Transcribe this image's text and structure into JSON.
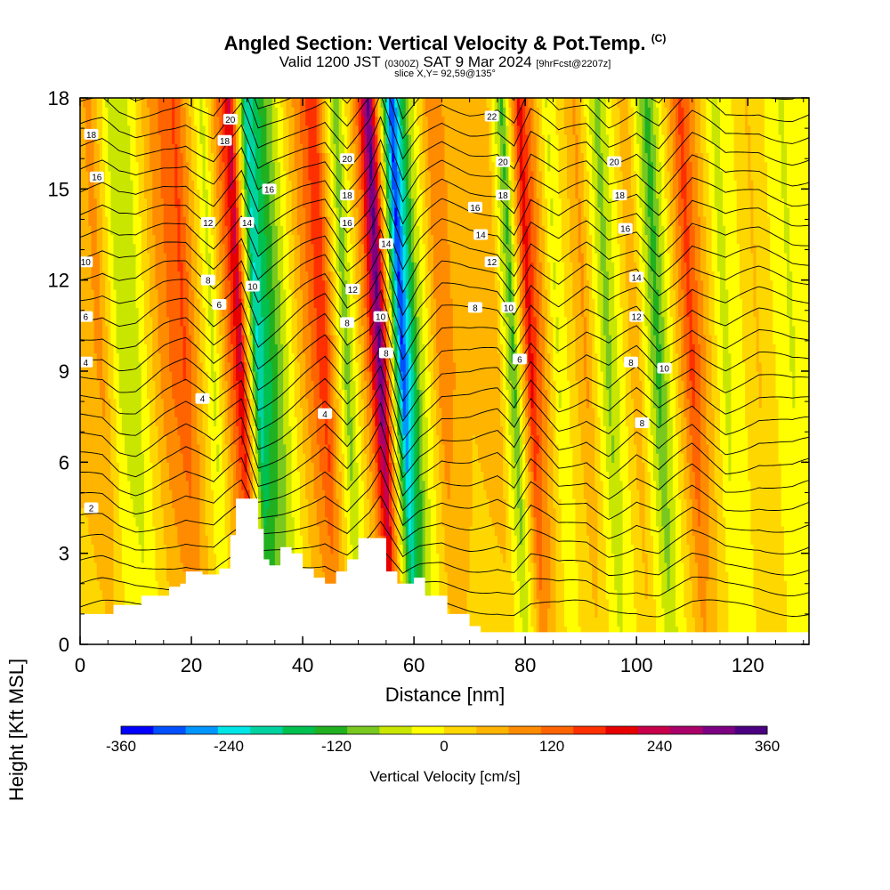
{
  "title": {
    "main": "Angled Section: Vertical Velocity & Pot.Temp.",
    "main_tag": "(C)",
    "valid_prefix": "Valid 1200 JST",
    "valid_zulu": "(0300Z)",
    "valid_date": "SAT 9 Mar 2024",
    "forecast": "[9hrFcst@2207z]",
    "slice": "slice X,Y= 92,59@135°"
  },
  "chart_data": {
    "type": "heatmap",
    "xlabel": "Distance [nm]",
    "ylabel": "Height [Kft MSL]",
    "xlim": [
      0,
      131
    ],
    "ylim": [
      0,
      18
    ],
    "x_ticks": [
      "0",
      "20",
      "40",
      "60",
      "80",
      "100",
      "120"
    ],
    "y_ticks": [
      "0",
      "3",
      "6",
      "9",
      "12",
      "15",
      "18"
    ],
    "colorbar": {
      "label": "Vertical Velocity [cm/s]",
      "ticks": [
        "-360",
        "-240",
        "-120",
        "0",
        "120",
        "240",
        "360"
      ],
      "min": -360,
      "max": 360,
      "colors": [
        "#0000ff",
        "#0050ff",
        "#0096ff",
        "#00e6e6",
        "#00d2a0",
        "#00c050",
        "#20b020",
        "#78c820",
        "#c8e600",
        "#ffff00",
        "#ffd700",
        "#ffb400",
        "#ff8c00",
        "#ff6400",
        "#ff3000",
        "#e60000",
        "#c8004b",
        "#aa0069",
        "#7d0082",
        "#4b0082"
      ]
    },
    "velocity_bands": [
      {
        "x": 0,
        "value": 50
      },
      {
        "x": 4,
        "value": 80
      },
      {
        "x": 7,
        "value": -40
      },
      {
        "x": 10,
        "value": -60
      },
      {
        "x": 15,
        "value": 90
      },
      {
        "x": 19,
        "value": 150
      },
      {
        "x": 24,
        "value": -50
      },
      {
        "x": 29,
        "value": 230
      },
      {
        "x": 32,
        "value": -220
      },
      {
        "x": 36,
        "value": -90
      },
      {
        "x": 40,
        "value": 60
      },
      {
        "x": 44,
        "value": 180
      },
      {
        "x": 48,
        "value": -100
      },
      {
        "x": 52,
        "value": 120
      },
      {
        "x": 54,
        "value": 340
      },
      {
        "x": 58,
        "value": -330
      },
      {
        "x": 61,
        "value": -80
      },
      {
        "x": 65,
        "value": 100
      },
      {
        "x": 70,
        "value": 40
      },
      {
        "x": 75,
        "value": 60
      },
      {
        "x": 78,
        "value": -120
      },
      {
        "x": 81,
        "value": 200
      },
      {
        "x": 86,
        "value": -40
      },
      {
        "x": 91,
        "value": 80
      },
      {
        "x": 95,
        "value": -90
      },
      {
        "x": 100,
        "value": 70
      },
      {
        "x": 104,
        "value": -130
      },
      {
        "x": 110,
        "value": 160
      },
      {
        "x": 116,
        "value": -50
      },
      {
        "x": 122,
        "value": 40
      },
      {
        "x": 128,
        "value": -40
      },
      {
        "x": 131,
        "value": -20
      }
    ],
    "terrain": [
      {
        "x": 0,
        "h": 1.0
      },
      {
        "x": 5,
        "h": 1.0
      },
      {
        "x": 6,
        "h": 1.3
      },
      {
        "x": 10,
        "h": 1.3
      },
      {
        "x": 11,
        "h": 1.6
      },
      {
        "x": 15,
        "h": 1.6
      },
      {
        "x": 16,
        "h": 1.9
      },
      {
        "x": 18,
        "h": 2.0
      },
      {
        "x": 19,
        "h": 2.4
      },
      {
        "x": 22,
        "h": 2.3
      },
      {
        "x": 25,
        "h": 2.5
      },
      {
        "x": 27,
        "h": 3.6
      },
      {
        "x": 28,
        "h": 4.8
      },
      {
        "x": 31,
        "h": 4.8
      },
      {
        "x": 32,
        "h": 3.8
      },
      {
        "x": 33,
        "h": 2.8
      },
      {
        "x": 34,
        "h": 2.6
      },
      {
        "x": 36,
        "h": 3.2
      },
      {
        "x": 38,
        "h": 3.0
      },
      {
        "x": 40,
        "h": 2.5
      },
      {
        "x": 42,
        "h": 2.2
      },
      {
        "x": 44,
        "h": 2.0
      },
      {
        "x": 46,
        "h": 2.4
      },
      {
        "x": 48,
        "h": 2.8
      },
      {
        "x": 50,
        "h": 3.5
      },
      {
        "x": 53,
        "h": 3.5
      },
      {
        "x": 55,
        "h": 2.4
      },
      {
        "x": 57,
        "h": 2.0
      },
      {
        "x": 60,
        "h": 2.2
      },
      {
        "x": 62,
        "h": 1.6
      },
      {
        "x": 66,
        "h": 1.0
      },
      {
        "x": 70,
        "h": 0.6
      },
      {
        "x": 72,
        "h": 0.4
      },
      {
        "x": 131,
        "h": 0.3
      }
    ],
    "theta_labels": [
      {
        "text": "18",
        "x": 2,
        "y": 16.8
      },
      {
        "text": "16",
        "x": 3,
        "y": 15.4
      },
      {
        "text": "10",
        "x": 1,
        "y": 12.6
      },
      {
        "text": "6",
        "x": 1,
        "y": 10.8
      },
      {
        "text": "4",
        "x": 1,
        "y": 9.3
      },
      {
        "text": "2",
        "x": 2,
        "y": 4.5
      },
      {
        "text": "20",
        "x": 27,
        "y": 17.3
      },
      {
        "text": "18",
        "x": 26,
        "y": 16.6
      },
      {
        "text": "12",
        "x": 23,
        "y": 13.9
      },
      {
        "text": "8",
        "x": 23,
        "y": 12.0
      },
      {
        "text": "6",
        "x": 25,
        "y": 11.2
      },
      {
        "text": "4",
        "x": 22,
        "y": 8.1
      },
      {
        "text": "16",
        "x": 34,
        "y": 15.0
      },
      {
        "text": "14",
        "x": 30,
        "y": 13.9
      },
      {
        "text": "10",
        "x": 31,
        "y": 11.8
      },
      {
        "text": "20",
        "x": 48,
        "y": 16.0
      },
      {
        "text": "18",
        "x": 48,
        "y": 14.8
      },
      {
        "text": "16",
        "x": 48,
        "y": 13.9
      },
      {
        "text": "12",
        "x": 49,
        "y": 11.7
      },
      {
        "text": "8",
        "x": 48,
        "y": 10.6
      },
      {
        "text": "4",
        "x": 44,
        "y": 7.6
      },
      {
        "text": "14",
        "x": 55,
        "y": 13.2
      },
      {
        "text": "10",
        "x": 54,
        "y": 10.8
      },
      {
        "text": "8",
        "x": 55,
        "y": 9.6
      },
      {
        "text": "22",
        "x": 74,
        "y": 17.4
      },
      {
        "text": "20",
        "x": 76,
        "y": 15.9
      },
      {
        "text": "18",
        "x": 76,
        "y": 14.8
      },
      {
        "text": "16",
        "x": 71,
        "y": 14.4
      },
      {
        "text": "14",
        "x": 72,
        "y": 13.5
      },
      {
        "text": "12",
        "x": 74,
        "y": 12.6
      },
      {
        "text": "8",
        "x": 71,
        "y": 11.1
      },
      {
        "text": "10",
        "x": 77,
        "y": 11.1
      },
      {
        "text": "6",
        "x": 79,
        "y": 9.4
      },
      {
        "text": "20",
        "x": 96,
        "y": 15.9
      },
      {
        "text": "18",
        "x": 97,
        "y": 14.8
      },
      {
        "text": "16",
        "x": 98,
        "y": 13.7
      },
      {
        "text": "14",
        "x": 100,
        "y": 12.1
      },
      {
        "text": "12",
        "x": 100,
        "y": 10.8
      },
      {
        "text": "8",
        "x": 99,
        "y": 9.3
      },
      {
        "text": "10",
        "x": 105,
        "y": 9.1
      },
      {
        "text": "8",
        "x": 101,
        "y": 7.3
      }
    ]
  }
}
